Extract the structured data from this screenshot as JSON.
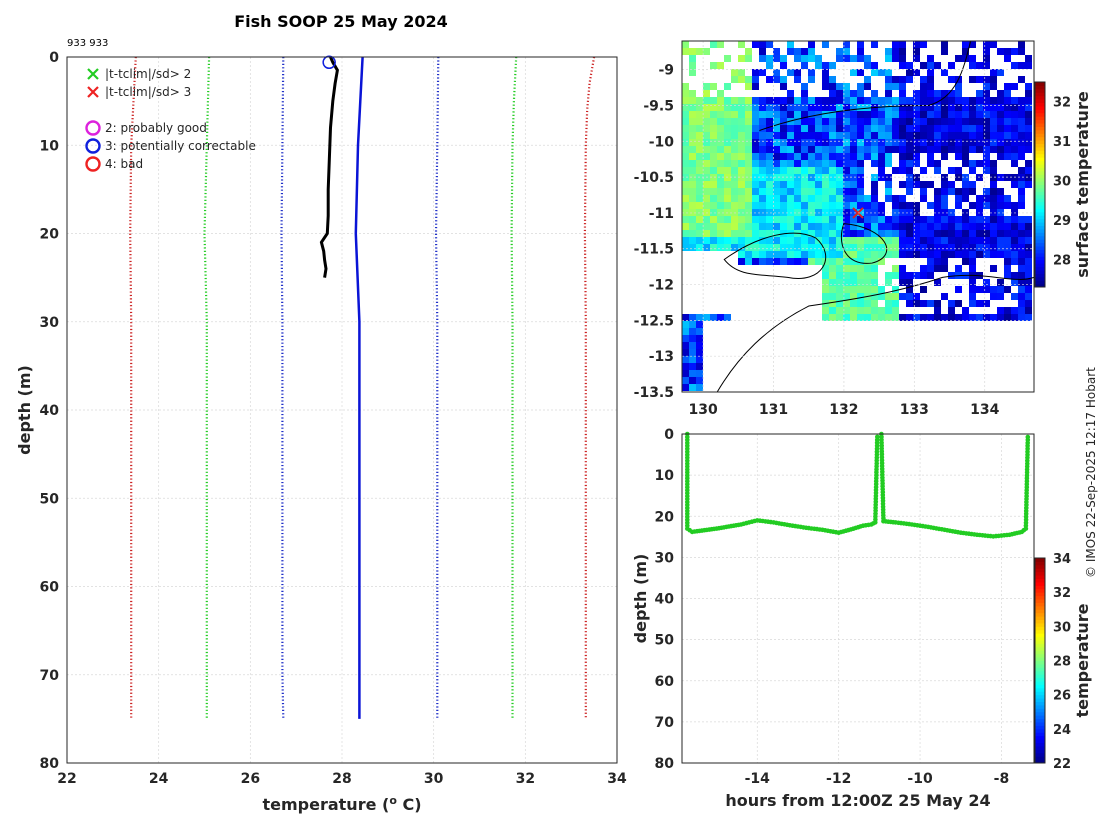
{
  "title": "Fish SOOP 25 May 2024",
  "subtitle_id": "933 933",
  "credit": "© IMOS 22-Sep-2025 12:17 Hobart",
  "colors": {
    "profile": "#000000",
    "climatology_mean": "#0a14d6",
    "sd1": "#2030c8",
    "sd2": "#22cc22",
    "sd3": "#cc2222",
    "depth_track": "#22cc22"
  },
  "chart_data": [
    {
      "type": "line",
      "name": "profile",
      "xlabel": "temperature (",
      "xlabel_sup": "o",
      "xlabel_unit": " C)",
      "ylabel": "depth (m)",
      "xlim": [
        22,
        34
      ],
      "ylim": [
        0,
        80
      ],
      "xticks": [
        "22",
        "24",
        "26",
        "28",
        "30",
        "32",
        "34"
      ],
      "yticks": [
        "0",
        "10",
        "20",
        "30",
        "40",
        "50",
        "60",
        "70",
        "80"
      ],
      "legend": [
        {
          "marker": "x",
          "color": "#22cc22",
          "label": "|t-tclim|/sd> 2"
        },
        {
          "marker": "x",
          "color": "#ee2222",
          "label": "|t-tclim|/sd> 3"
        },
        {
          "marker": "o",
          "color": "#dd22dd",
          "label": "2: probably good"
        },
        {
          "marker": "o",
          "color": "#1020dd",
          "label": "3: potentially correctable"
        },
        {
          "marker": "o",
          "color": "#ee2222",
          "label": "4: bad"
        }
      ],
      "series": [
        {
          "name": "observed",
          "style": "solid",
          "depth": [
            0,
            0.6,
            1.5,
            3,
            5,
            8,
            12,
            15,
            18,
            20,
            21,
            22,
            23,
            24,
            25
          ],
          "temp": [
            27.75,
            27.8,
            27.9,
            27.85,
            27.8,
            27.75,
            27.72,
            27.7,
            27.7,
            27.68,
            27.55,
            27.6,
            27.62,
            27.65,
            27.62
          ]
        },
        {
          "name": "clim_mean",
          "style": "solid",
          "depth": [
            0,
            5,
            10,
            20,
            30,
            40,
            50,
            60,
            70,
            75
          ],
          "temp": [
            28.45,
            28.4,
            28.35,
            28.3,
            28.38,
            28.38,
            28.38,
            28.38,
            28.38,
            28.38
          ]
        },
        {
          "name": "clim_minus1sd",
          "style": "dotted",
          "depth": [
            0,
            10,
            20,
            30,
            40,
            50,
            60,
            70,
            75
          ],
          "temp": [
            26.72,
            26.7,
            26.68,
            26.7,
            26.7,
            26.7,
            26.7,
            26.7,
            26.72
          ]
        },
        {
          "name": "clim_plus1sd",
          "style": "dotted",
          "depth": [
            0,
            10,
            20,
            30,
            40,
            50,
            60,
            70,
            75
          ],
          "temp": [
            30.1,
            30.08,
            30.05,
            30.08,
            30.08,
            30.08,
            30.08,
            30.08,
            30.08
          ]
        },
        {
          "name": "clim_minus2sd",
          "style": "dotted",
          "depth": [
            0,
            10,
            20,
            30,
            40,
            50,
            60,
            70,
            75
          ],
          "temp": [
            25.1,
            25.05,
            25.0,
            25.05,
            25.05,
            25.05,
            25.05,
            25.05,
            25.05
          ]
        },
        {
          "name": "clim_plus2sd",
          "style": "dotted",
          "depth": [
            0,
            5,
            10,
            20,
            30,
            40,
            50,
            60,
            70,
            75
          ],
          "temp": [
            31.8,
            31.75,
            31.72,
            31.7,
            31.72,
            31.72,
            31.72,
            31.72,
            31.72,
            31.72
          ]
        },
        {
          "name": "clim_minus3sd",
          "style": "dotted",
          "depth": [
            0,
            10,
            20,
            30,
            40,
            50,
            60,
            70,
            75
          ],
          "temp": [
            23.5,
            23.4,
            23.38,
            23.4,
            23.4,
            23.4,
            23.4,
            23.4,
            23.4
          ]
        },
        {
          "name": "clim_plus3sd",
          "style": "dotted",
          "depth": [
            0,
            3,
            6,
            10,
            20,
            30,
            40,
            50,
            60,
            70,
            75
          ],
          "temp": [
            33.5,
            33.4,
            33.35,
            33.32,
            33.3,
            33.32,
            33.32,
            33.32,
            33.32,
            33.32,
            33.32
          ]
        }
      ],
      "flag_circle": {
        "temp": 27.72,
        "depth": 0.6,
        "flag": "3"
      }
    },
    {
      "type": "heatmap",
      "name": "sst_map",
      "xlim": [
        129.7,
        134.7
      ],
      "ylim": [
        -13.5,
        -8.6
      ],
      "xticks": [
        "130",
        "131",
        "132",
        "133",
        "134"
      ],
      "yticks": [
        "-9",
        "-9.5",
        "-10",
        "-10.5",
        "-11",
        "-11.5",
        "-12",
        "-12.5",
        "-13",
        "-13.5"
      ],
      "colorbar_label": "surface temperature",
      "colorbar_range": [
        27.3,
        32.5
      ],
      "colorbar_ticks": [
        "28",
        "29",
        "30",
        "31",
        "32"
      ],
      "marker": {
        "lon": 132.2,
        "lat": -11.0
      }
    },
    {
      "type": "scatter",
      "name": "depth_time",
      "xlabel": "hours from 12:00Z 25 May 24",
      "ylabel": "depth (m)",
      "xlim": [
        -15.85,
        -7.2
      ],
      "ylim": [
        0,
        80
      ],
      "xticks": [
        "-14",
        "-12",
        "-10",
        "-8"
      ],
      "yticks": [
        "0",
        "10",
        "20",
        "30",
        "40",
        "50",
        "60",
        "70",
        "80"
      ],
      "colorbar_label": "temperature",
      "colorbar_range": [
        22,
        34
      ],
      "colorbar_ticks": [
        "22",
        "24",
        "26",
        "28",
        "30",
        "32",
        "34"
      ],
      "segments": [
        {
          "hours": [
            -15.72,
            -15.72,
            -15.6,
            -15.3,
            -15.0,
            -14.7,
            -14.4,
            -14.0,
            -13.6,
            -13.2,
            -12.8,
            -12.4,
            -12.0,
            -11.7,
            -11.4,
            -11.2,
            -11.1,
            -11.05
          ],
          "depth": [
            0,
            23,
            23.8,
            23.4,
            23.0,
            22.5,
            22.0,
            21.0,
            21.5,
            22.2,
            22.8,
            23.3,
            24.0,
            23.2,
            22.3,
            22.0,
            21.5,
            0
          ]
        },
        {
          "hours": [
            -10.95,
            -10.9,
            -10.6,
            -10.2,
            -9.8,
            -9.4,
            -9.0,
            -8.6,
            -8.2,
            -7.8,
            -7.5,
            -7.4,
            -7.35
          ],
          "depth": [
            0,
            21.2,
            21.5,
            22.0,
            22.6,
            23.3,
            24.0,
            24.5,
            24.9,
            24.5,
            23.8,
            23.0,
            0
          ]
        }
      ]
    }
  ]
}
